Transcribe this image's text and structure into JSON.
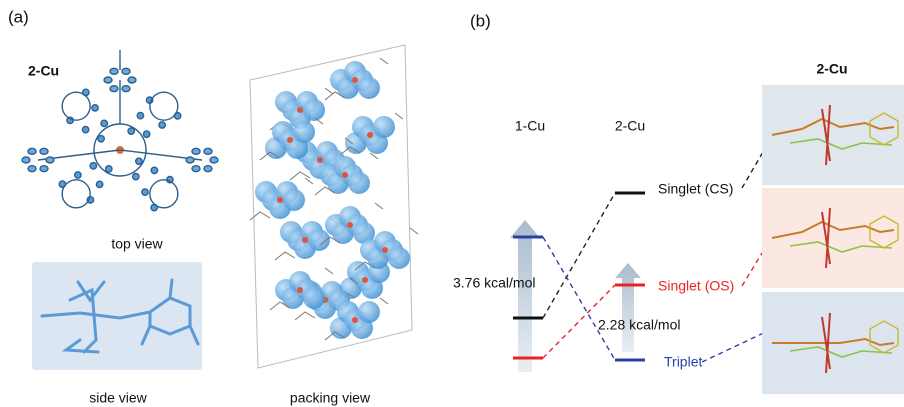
{
  "panel_a": {
    "label": "(a)",
    "molecule_label": "2-Cu",
    "top_view": "top view",
    "side_view": "side view",
    "packing_view": "packing view"
  },
  "panel_b": {
    "label": "(b)",
    "columns": [
      "1-Cu",
      "2-Cu"
    ],
    "structure_label": "2-Cu",
    "states": [
      "Singlet (CS)",
      "Singlet (OS)",
      "Triplet"
    ],
    "energy_gaps": [
      "3.76 kcal/mol",
      "2.28 kcal/mol"
    ]
  }
}
